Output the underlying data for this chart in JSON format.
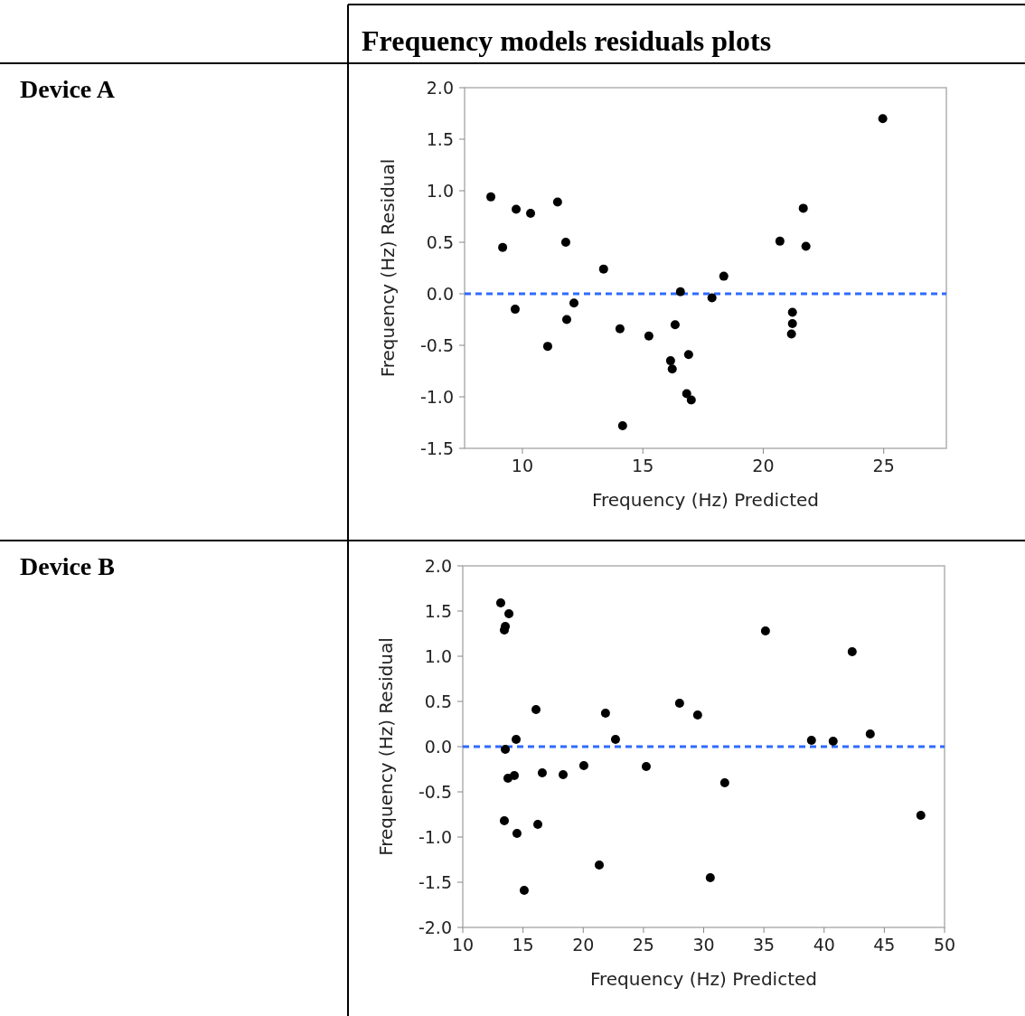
{
  "chart_data": [
    {
      "type": "other",
      "title": "Frequency models residuals plots",
      "annotations": [
        "Device A",
        "Device B"
      ]
    },
    {
      "type": "scatter",
      "xlabel": "Frequency (Hz) Predicted",
      "ylabel": "Frequency (Hz) Residual",
      "xlim": [
        7.6,
        27.6
      ],
      "ylim": [
        -1.5,
        2.0
      ],
      "xticks": [
        10,
        15,
        20,
        25
      ],
      "yticks": [
        {
          "value": -1.5,
          "label": "-1.5"
        },
        {
          "value": -1,
          "label": "-1.0"
        },
        {
          "value": -0.5,
          "label": "-0.5"
        },
        {
          "value": 0,
          "label": "0.0"
        },
        {
          "value": 0.5,
          "label": "0.5"
        },
        {
          "value": 1,
          "label": "1.0"
        },
        {
          "value": 1.5,
          "label": "1.5"
        },
        {
          "value": 2,
          "label": "2.0"
        }
      ],
      "marker": "circle",
      "grid": false,
      "ref_lines": [
        {
          "axis": "y",
          "value": 0,
          "color": "#2f6bff",
          "line_style": "dashed"
        }
      ],
      "series": [
        {
          "color": "#000000",
          "x": [
            8.69,
            9.18,
            9.74,
            9.7,
            10.34,
            11.05,
            11.46,
            11.8,
            11.84,
            12.14,
            13.37,
            14.05,
            14.16,
            15.25,
            16.15,
            16.22,
            16.34,
            16.56,
            16.82,
            16.9,
            17.01,
            17.87,
            18.36,
            20.69,
            21.21,
            21.21,
            21.17,
            21.66,
            21.77,
            24.96
          ],
          "values": [
            0.94,
            0.45,
            0.82,
            -0.15,
            0.78,
            -0.51,
            0.89,
            0.5,
            -0.25,
            -0.09,
            0.24,
            -0.34,
            -1.28,
            -0.41,
            -0.65,
            -0.73,
            -0.3,
            0.02,
            -0.97,
            -0.59,
            -1.03,
            -0.04,
            0.17,
            0.51,
            -0.18,
            -0.29,
            -0.39,
            0.83,
            0.46,
            1.7
          ]
        }
      ]
    },
    {
      "type": "scatter",
      "xlabel": "Frequency (Hz) Predicted",
      "ylabel": "Frequency (Hz) Residual",
      "xlim": [
        10,
        50
      ],
      "ylim": [
        -2.0,
        2.0
      ],
      "xticks": [
        10,
        15,
        20,
        25,
        30,
        35,
        40,
        45,
        50
      ],
      "yticks": [
        {
          "value": -2,
          "label": "-2.0"
        },
        {
          "value": -1.5,
          "label": "-1.5"
        },
        {
          "value": -1,
          "label": "-1.0"
        },
        {
          "value": -0.5,
          "label": "-0.5"
        },
        {
          "value": 0,
          "label": "0.0"
        },
        {
          "value": 0.5,
          "label": "0.5"
        },
        {
          "value": 1,
          "label": "1.0"
        },
        {
          "value": 1.5,
          "label": "1.5"
        },
        {
          "value": 2,
          "label": "2.0"
        }
      ],
      "marker": "circle",
      "grid": false,
      "ref_lines": [
        {
          "axis": "y",
          "value": 0,
          "color": "#2f6bff",
          "line_style": "dashed"
        }
      ],
      "series": [
        {
          "color": "#000000",
          "x": [
            13.15,
            13.83,
            13.53,
            13.45,
            13.53,
            13.75,
            14.28,
            14.43,
            13.45,
            14.5,
            15.1,
            16.08,
            16.6,
            16.23,
            18.33,
            20.05,
            21.33,
            21.85,
            22.68,
            25.23,
            28.0,
            29.5,
            30.55,
            31.75,
            35.13,
            38.95,
            40.75,
            42.33,
            43.83,
            48.03
          ],
          "values": [
            1.59,
            1.47,
            1.33,
            1.29,
            -0.03,
            -0.35,
            -0.32,
            0.08,
            -0.82,
            -0.96,
            -1.59,
            0.41,
            -0.29,
            -0.86,
            -0.31,
            -0.21,
            -1.31,
            0.37,
            0.08,
            -0.22,
            0.48,
            0.35,
            -1.45,
            -0.4,
            1.28,
            0.07,
            0.06,
            1.05,
            0.14,
            -0.76
          ]
        }
      ]
    }
  ]
}
